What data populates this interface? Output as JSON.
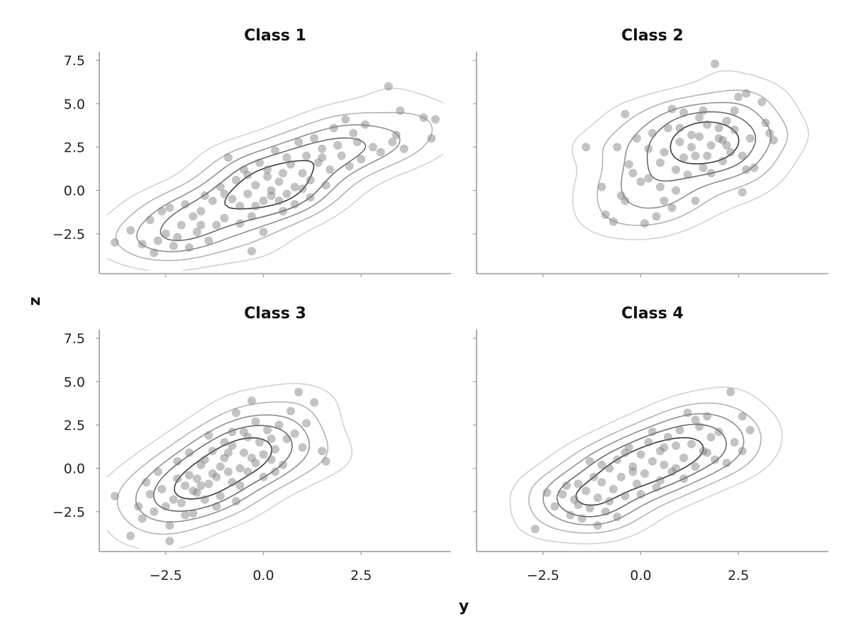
{
  "figure": {
    "xlabel": "y",
    "ylabel": "z"
  },
  "chart_data": [
    {
      "type": "scatter",
      "title": "Class 1",
      "xlim": [
        -4.2,
        4.8
      ],
      "ylim": [
        -4.8,
        8.0
      ],
      "xticks": [
        "-2.5",
        "0.0",
        "2.5"
      ],
      "yticks": [
        "-2.5",
        "0.0",
        "2.5",
        "5.0",
        "7.5"
      ],
      "show_x_ticklabels": false,
      "show_y_ticklabels": true,
      "points": [
        [
          -3.8,
          -3.0
        ],
        [
          -3.4,
          -2.3
        ],
        [
          -3.1,
          -3.1
        ],
        [
          -2.8,
          -3.6
        ],
        [
          -2.7,
          -2.9
        ],
        [
          -2.5,
          -2.5
        ],
        [
          -2.3,
          -3.2
        ],
        [
          -2.1,
          -2.0
        ],
        [
          -1.9,
          -3.3
        ],
        [
          -1.7,
          -2.4
        ],
        [
          -1.6,
          -1.2
        ],
        [
          -1.4,
          -2.9
        ],
        [
          -1.2,
          -2.0
        ],
        [
          -1.0,
          -1.6
        ],
        [
          -0.8,
          -0.5
        ],
        [
          -0.6,
          -0.9
        ],
        [
          -0.4,
          -0.2
        ],
        [
          -0.3,
          -1.5
        ],
        [
          -0.2,
          0.3
        ],
        [
          0.0,
          -0.6
        ],
        [
          0.1,
          0.8
        ],
        [
          0.2,
          -0.3
        ],
        [
          0.4,
          0.5
        ],
        [
          0.5,
          1.0
        ],
        [
          0.6,
          -0.2
        ],
        [
          0.7,
          1.5
        ],
        [
          0.8,
          0.2
        ],
        [
          1.0,
          1.0
        ],
        [
          1.1,
          2.0
        ],
        [
          1.2,
          0.6
        ],
        [
          1.4,
          1.6
        ],
        [
          1.5,
          2.4
        ],
        [
          1.7,
          1.2
        ],
        [
          1.8,
          3.6
        ],
        [
          2.0,
          2.0
        ],
        [
          2.1,
          4.1
        ],
        [
          2.2,
          1.4
        ],
        [
          2.4,
          2.8
        ],
        [
          2.6,
          3.8
        ],
        [
          2.8,
          2.5
        ],
        [
          3.0,
          2.2
        ],
        [
          3.2,
          6.0
        ],
        [
          3.3,
          2.8
        ],
        [
          3.5,
          4.6
        ],
        [
          3.6,
          2.4
        ],
        [
          4.1,
          4.2
        ],
        [
          4.3,
          3.0
        ],
        [
          4.4,
          4.1
        ],
        [
          -2.9,
          -1.7
        ],
        [
          -2.4,
          -1.0
        ],
        [
          -2.0,
          -0.8
        ],
        [
          -1.5,
          -0.3
        ],
        [
          -1.1,
          0.2
        ],
        [
          -0.9,
          1.9
        ],
        [
          -0.5,
          1.2
        ],
        [
          -0.1,
          1.6
        ],
        [
          0.3,
          2.3
        ],
        [
          0.9,
          2.8
        ],
        [
          1.3,
          3.0
        ],
        [
          1.6,
          0.3
        ],
        [
          0.0,
          -2.4
        ],
        [
          -0.3,
          -3.5
        ],
        [
          0.5,
          -1.2
        ],
        [
          -1.3,
          -0.6
        ],
        [
          -0.7,
          0.6
        ],
        [
          0.2,
          0.0
        ],
        [
          0.8,
          -0.8
        ],
        [
          -1.8,
          -1.5
        ],
        [
          -2.2,
          -2.7
        ],
        [
          1.9,
          2.6
        ],
        [
          2.5,
          1.8
        ],
        [
          3.4,
          3.2
        ],
        [
          -0.4,
          0.9
        ],
        [
          0.6,
          1.9
        ],
        [
          1.2,
          -0.4
        ],
        [
          -1.6,
          -2.0
        ],
        [
          -0.2,
          -0.9
        ],
        [
          0.4,
          -0.6
        ],
        [
          1.0,
          0.1
        ],
        [
          1.5,
          1.9
        ],
        [
          2.3,
          3.3
        ],
        [
          -0.6,
          -1.9
        ],
        [
          -1.0,
          -0.2
        ],
        [
          0.1,
          1.2
        ],
        [
          -2.6,
          -1.2
        ]
      ],
      "contour_levels": 5
    },
    {
      "type": "scatter",
      "title": "Class 2",
      "xlim": [
        -4.2,
        4.8
      ],
      "ylim": [
        -4.8,
        8.0
      ],
      "xticks": [
        "-2.5",
        "0.0",
        "2.5"
      ],
      "yticks": [
        "-2.5",
        "0.0",
        "2.5",
        "5.0",
        "7.5"
      ],
      "show_x_ticklabels": false,
      "show_y_ticklabels": false,
      "points": [
        [
          -1.4,
          2.5
        ],
        [
          -1.0,
          0.2
        ],
        [
          -0.7,
          -1.8
        ],
        [
          -0.6,
          2.5
        ],
        [
          -0.4,
          4.4
        ],
        [
          -0.3,
          1.5
        ],
        [
          -0.1,
          3.0
        ],
        [
          0.1,
          -1.9
        ],
        [
          0.2,
          0.7
        ],
        [
          0.3,
          3.3
        ],
        [
          0.4,
          -1.5
        ],
        [
          0.5,
          1.6
        ],
        [
          0.6,
          2.2
        ],
        [
          0.7,
          3.6
        ],
        [
          0.8,
          -1.0
        ],
        [
          0.9,
          1.2
        ],
        [
          1.0,
          2.8
        ],
        [
          1.1,
          4.5
        ],
        [
          1.2,
          0.9
        ],
        [
          1.3,
          3.2
        ],
        [
          1.4,
          2.0
        ],
        [
          1.5,
          4.2
        ],
        [
          1.6,
          1.3
        ],
        [
          1.7,
          3.8
        ],
        [
          1.8,
          2.6
        ],
        [
          1.9,
          7.3
        ],
        [
          2.0,
          3.0
        ],
        [
          2.1,
          1.7
        ],
        [
          2.2,
          4.0
        ],
        [
          2.3,
          2.2
        ],
        [
          2.4,
          3.5
        ],
        [
          2.5,
          5.4
        ],
        [
          2.6,
          2.0
        ],
        [
          2.7,
          5.6
        ],
        [
          2.8,
          3.0
        ],
        [
          2.9,
          1.3
        ],
        [
          3.1,
          5.1
        ],
        [
          3.2,
          3.9
        ],
        [
          3.3,
          3.3
        ],
        [
          3.4,
          2.9
        ],
        [
          2.6,
          -0.1
        ],
        [
          1.4,
          -0.6
        ],
        [
          0.0,
          0.5
        ],
        [
          -0.9,
          -1.4
        ],
        [
          0.8,
          4.7
        ],
        [
          1.6,
          4.6
        ],
        [
          2.0,
          3.6
        ],
        [
          2.4,
          4.6
        ],
        [
          1.1,
          1.9
        ],
        [
          0.5,
          0.2
        ],
        [
          -0.2,
          1.0
        ],
        [
          -0.5,
          -0.3
        ],
        [
          1.8,
          1.0
        ],
        [
          2.2,
          2.6
        ],
        [
          1.3,
          2.5
        ],
        [
          0.9,
          0.0
        ],
        [
          0.2,
          2.4
        ],
        [
          1.5,
          3.1
        ],
        [
          2.1,
          2.9
        ],
        [
          2.7,
          1.2
        ],
        [
          1.0,
          3.6
        ],
        [
          1.7,
          2.0
        ],
        [
          0.6,
          -0.6
        ],
        [
          -0.4,
          -0.6
        ]
      ],
      "contour_levels": 5
    },
    {
      "type": "scatter",
      "title": "Class 3",
      "xlim": [
        -4.2,
        4.8
      ],
      "ylim": [
        -4.8,
        8.0
      ],
      "xticks": [
        "-2.5",
        "0.0",
        "2.5"
      ],
      "yticks": [
        "-2.5",
        "0.0",
        "2.5",
        "5.0",
        "7.5"
      ],
      "show_x_ticklabels": true,
      "show_y_ticklabels": true,
      "points": [
        [
          -3.8,
          -1.6
        ],
        [
          -3.4,
          -3.9
        ],
        [
          -3.2,
          -2.2
        ],
        [
          -3.0,
          -0.8
        ],
        [
          -2.8,
          -2.5
        ],
        [
          -2.6,
          -1.2
        ],
        [
          -2.4,
          -4.2
        ],
        [
          -2.3,
          -1.8
        ],
        [
          -2.2,
          0.4
        ],
        [
          -2.1,
          -2.0
        ],
        [
          -2.0,
          -1.0
        ],
        [
          -1.9,
          -0.4
        ],
        [
          -1.8,
          -2.6
        ],
        [
          -1.7,
          -1.4
        ],
        [
          -1.6,
          0.2
        ],
        [
          -1.5,
          -1.8
        ],
        [
          -1.4,
          -0.9
        ],
        [
          -1.3,
          1.0
        ],
        [
          -1.2,
          -0.5
        ],
        [
          -1.1,
          -1.6
        ],
        [
          -1.0,
          0.6
        ],
        [
          -0.9,
          -0.2
        ],
        [
          -0.8,
          1.3
        ],
        [
          -0.7,
          3.2
        ],
        [
          -0.6,
          0.0
        ],
        [
          -0.5,
          0.9
        ],
        [
          -0.4,
          1.8
        ],
        [
          -0.3,
          3.9
        ],
        [
          -0.2,
          0.3
        ],
        [
          -0.1,
          1.5
        ],
        [
          0.0,
          -0.5
        ],
        [
          0.1,
          2.2
        ],
        [
          0.2,
          0.5
        ],
        [
          0.3,
          1.1
        ],
        [
          0.4,
          2.5
        ],
        [
          0.5,
          0.2
        ],
        [
          0.6,
          1.7
        ],
        [
          0.7,
          3.3
        ],
        [
          0.9,
          4.4
        ],
        [
          1.0,
          1.2
        ],
        [
          1.1,
          2.6
        ],
        [
          1.3,
          3.8
        ],
        [
          1.5,
          1.0
        ],
        [
          1.6,
          0.4
        ],
        [
          -2.5,
          -2.2
        ],
        [
          -2.0,
          -2.7
        ],
        [
          -1.6,
          -1.0
        ],
        [
          -1.2,
          -2.2
        ],
        [
          -0.8,
          -0.8
        ],
        [
          -0.4,
          -0.2
        ],
        [
          0.0,
          0.8
        ],
        [
          -1.5,
          0.5
        ],
        [
          -1.0,
          1.5
        ],
        [
          -0.5,
          2.1
        ],
        [
          -2.7,
          -0.2
        ],
        [
          -3.1,
          -2.9
        ],
        [
          -2.2,
          -0.6
        ],
        [
          -1.8,
          -1.3
        ],
        [
          -1.3,
          -0.3
        ],
        [
          -0.9,
          0.9
        ],
        [
          -0.6,
          -1.0
        ],
        [
          -0.2,
          2.7
        ],
        [
          0.3,
          -0.2
        ],
        [
          0.8,
          2.0
        ],
        [
          -2.4,
          -3.3
        ],
        [
          -1.9,
          0.9
        ],
        [
          -1.1,
          0.1
        ],
        [
          -0.7,
          -1.9
        ],
        [
          -0.3,
          0.6
        ],
        [
          0.2,
          1.7
        ],
        [
          -2.9,
          -1.5
        ],
        [
          -1.4,
          1.9
        ],
        [
          -0.8,
          2.1
        ],
        [
          -1.7,
          -0.6
        ]
      ],
      "contour_levels": 5
    },
    {
      "type": "scatter",
      "title": "Class 4",
      "xlim": [
        -4.2,
        4.8
      ],
      "ylim": [
        -4.8,
        8.0
      ],
      "xticks": [
        "-2.5",
        "0.0",
        "2.5"
      ],
      "yticks": [
        "-2.5",
        "0.0",
        "2.5",
        "5.0",
        "7.5"
      ],
      "show_x_ticklabels": true,
      "show_y_ticklabels": false,
      "points": [
        [
          -2.7,
          -3.5
        ],
        [
          -2.4,
          -1.4
        ],
        [
          -2.2,
          -2.2
        ],
        [
          -2.0,
          -1.5
        ],
        [
          -1.8,
          -2.7
        ],
        [
          -1.7,
          -1.8
        ],
        [
          -1.6,
          -0.9
        ],
        [
          -1.5,
          -2.9
        ],
        [
          -1.4,
          -1.3
        ],
        [
          -1.3,
          -2.3
        ],
        [
          -1.2,
          -0.5
        ],
        [
          -1.1,
          -1.7
        ],
        [
          -1.0,
          -0.8
        ],
        [
          -0.9,
          -2.5
        ],
        [
          -0.8,
          0.0
        ],
        [
          -0.7,
          -1.2
        ],
        [
          -0.6,
          0.5
        ],
        [
          -0.5,
          -0.5
        ],
        [
          -0.4,
          -1.6
        ],
        [
          -0.3,
          1.2
        ],
        [
          -0.2,
          0.1
        ],
        [
          -0.1,
          -0.9
        ],
        [
          0.0,
          0.8
        ],
        [
          0.1,
          -0.3
        ],
        [
          0.2,
          1.5
        ],
        [
          0.3,
          0.4
        ],
        [
          0.4,
          -1.1
        ],
        [
          0.5,
          1.0
        ],
        [
          0.6,
          0.2
        ],
        [
          0.7,
          1.8
        ],
        [
          0.8,
          -0.2
        ],
        [
          0.9,
          1.3
        ],
        [
          1.0,
          2.2
        ],
        [
          1.1,
          0.6
        ],
        [
          1.2,
          3.2
        ],
        [
          1.3,
          1.4
        ],
        [
          1.4,
          0.1
        ],
        [
          1.5,
          2.4
        ],
        [
          1.6,
          1.0
        ],
        [
          1.7,
          3.0
        ],
        [
          1.8,
          1.8
        ],
        [
          1.9,
          0.5
        ],
        [
          2.0,
          2.1
        ],
        [
          2.2,
          0.3
        ],
        [
          2.3,
          4.4
        ],
        [
          2.4,
          1.5
        ],
        [
          2.6,
          3.0
        ],
        [
          2.8,
          2.2
        ],
        [
          2.6,
          1.0
        ],
        [
          -1.9,
          -1.0
        ],
        [
          -1.3,
          0.4
        ],
        [
          -0.6,
          -2.8
        ],
        [
          0.0,
          -1.5
        ],
        [
          0.3,
          2.1
        ],
        [
          1.1,
          -0.6
        ],
        [
          -0.4,
          0.9
        ],
        [
          0.6,
          1.2
        ],
        [
          1.4,
          2.8
        ],
        [
          -1.0,
          0.2
        ],
        [
          0.9,
          0.0
        ],
        [
          -0.2,
          -0.2
        ],
        [
          0.5,
          -0.7
        ],
        [
          -1.6,
          -2.1
        ],
        [
          -0.8,
          -1.9
        ],
        [
          1.7,
          0.9
        ],
        [
          -1.1,
          -3.3
        ]
      ],
      "contour_levels": 5
    }
  ]
}
